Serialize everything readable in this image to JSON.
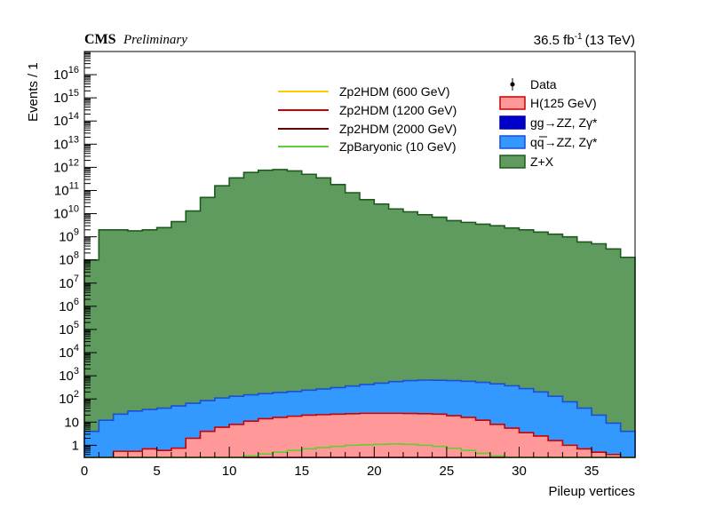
{
  "header": {
    "experiment": "CMS",
    "status": "Preliminary",
    "lumi": "36.5 fb",
    "lumi_exp": "-1",
    "energy": "(13 TeV)"
  },
  "chart_data": {
    "type": "area",
    "xlabel": "Pileup vertices",
    "ylabel": "Events / 1",
    "xlim": [
      0,
      38
    ],
    "ylim": [
      0.3,
      1e+17
    ],
    "y_scale": "log",
    "stacked": true,
    "x_ticks": [
      0,
      5,
      10,
      15,
      20,
      25,
      30,
      35
    ],
    "y_ticks": [
      {
        "value": 1,
        "base": "1",
        "exp": ""
      },
      {
        "value": 10,
        "base": "10",
        "exp": ""
      },
      {
        "value": 100,
        "base": "10",
        "exp": "2"
      },
      {
        "value": 1000,
        "base": "10",
        "exp": "3"
      },
      {
        "value": 10000.0,
        "base": "10",
        "exp": "4"
      },
      {
        "value": 100000.0,
        "base": "10",
        "exp": "5"
      },
      {
        "value": 1000000.0,
        "base": "10",
        "exp": "6"
      },
      {
        "value": 10000000.0,
        "base": "10",
        "exp": "7"
      },
      {
        "value": 100000000.0,
        "base": "10",
        "exp": "8"
      },
      {
        "value": 1000000000.0,
        "base": "10",
        "exp": "9"
      },
      {
        "value": 10000000000.0,
        "base": "10",
        "exp": "10"
      },
      {
        "value": 100000000000.0,
        "base": "10",
        "exp": "11"
      },
      {
        "value": 1000000000000.0,
        "base": "10",
        "exp": "12"
      },
      {
        "value": 10000000000000.0,
        "base": "10",
        "exp": "13"
      },
      {
        "value": 100000000000000.0,
        "base": "10",
        "exp": "14"
      },
      {
        "value": 1000000000000000.0,
        "base": "10",
        "exp": "15"
      },
      {
        "value": 1e+16,
        "base": "10",
        "exp": "16"
      }
    ],
    "bin_edges": [
      0,
      1,
      2,
      3,
      4,
      5,
      6,
      7,
      8,
      9,
      10,
      11,
      12,
      13,
      14,
      15,
      16,
      17,
      18,
      19,
      20,
      21,
      22,
      23,
      24,
      25,
      26,
      27,
      28,
      29,
      30,
      31,
      32,
      33,
      34,
      35,
      36,
      37,
      38
    ],
    "stack_totals": [
      {
        "name": "Z+X",
        "color": "#5f9a5f",
        "line": "#1e5a1e",
        "values": [
          100000000.0,
          2000000000.0,
          2000000000.0,
          1800000000.0,
          2000000000.0,
          2500000000.0,
          4500000000.0,
          13000000000.0,
          50000000000.0,
          160000000000.0,
          350000000000.0,
          600000000000.0,
          750000000000.0,
          800000000000.0,
          700000000000.0,
          500000000000.0,
          350000000000.0,
          180000000000.0,
          80000000000.0,
          40000000000.0,
          26000000000.0,
          16000000000.0,
          12000000000.0,
          9000000000.0,
          7000000000.0,
          5000000000.0,
          4200000000.0,
          3500000000.0,
          3000000000.0,
          2400000000.0,
          2000000000.0,
          1600000000.0,
          1300000000.0,
          1000000000.0,
          600000000.0,
          500000000.0,
          300000000.0,
          130000000.0
        ]
      },
      {
        "name": "qq→ZZ, Zγ*",
        "color": "#3399ff",
        "line": "#1a4fd6",
        "values": [
          4,
          12,
          22,
          30,
          35,
          40,
          50,
          65,
          85,
          110,
          130,
          150,
          170,
          190,
          210,
          240,
          270,
          310,
          360,
          420,
          480,
          560,
          620,
          650,
          640,
          620,
          580,
          520,
          450,
          370,
          280,
          200,
          130,
          75,
          40,
          20,
          9,
          4
        ]
      },
      {
        "name": "gg→ZZ, Zγ*",
        "color": "#0000cc",
        "line": "#000099",
        "values": [
          0.3,
          0.3,
          0.3,
          0.3,
          0.3,
          0.3,
          0.6,
          1.2,
          2.5,
          3.5,
          5,
          7,
          9,
          11,
          12,
          13,
          14,
          14.5,
          15,
          15,
          15,
          14.5,
          14,
          12,
          10,
          7,
          5,
          3.5,
          2,
          1.2,
          0.8,
          0.5,
          0.3,
          0.3,
          0.3,
          0.3,
          0.3,
          0.3
        ]
      },
      {
        "name": "H(125 GeV)",
        "color": "#ff9999",
        "line": "#cc0000",
        "values": [
          0.3,
          0.3,
          0.55,
          0.55,
          0.7,
          0.6,
          0.75,
          2,
          4,
          6,
          8,
          11,
          14,
          16,
          18,
          20,
          21,
          22,
          23,
          24,
          24,
          24,
          23.5,
          23,
          22,
          19,
          16,
          12,
          8,
          5.5,
          3.5,
          2.5,
          1.6,
          1,
          0.7,
          0.5,
          0.4,
          0.3
        ]
      }
    ],
    "signals": [
      {
        "name": "Zp2HDM (600 GeV)",
        "color": "#ffcc00",
        "values": []
      },
      {
        "name": "Zp2HDM (1200 GeV)",
        "color": "#cc0000",
        "values": []
      },
      {
        "name": "Zp2HDM (2000 GeV)",
        "color": "#660000",
        "values": []
      },
      {
        "name": "ZpBaryonic (10 GeV)",
        "color": "#66cc33",
        "values": [
          0.3,
          0.3,
          0.3,
          0.3,
          0.3,
          0.3,
          0.3,
          0.3,
          0.3,
          0.3,
          0.3,
          0.35,
          0.42,
          0.5,
          0.6,
          0.7,
          0.8,
          0.9,
          1,
          1.05,
          1.1,
          1.15,
          1.1,
          1,
          0.9,
          0.75,
          0.6,
          0.45,
          0.35,
          0.3,
          0.3,
          0.3,
          0.3,
          0.3,
          0.3,
          0.3,
          0.3,
          0.3
        ]
      }
    ],
    "legend": {
      "left": [
        "Zp2HDM (600 GeV)",
        "Zp2HDM (1200 GeV)",
        "Zp2HDM (2000 GeV)",
        "ZpBaryonic (10 GeV)"
      ],
      "right": [
        "Data",
        "H(125 GeV)",
        "gg→ZZ, Zγ*",
        "qq→ZZ, Zγ*",
        "Z+X"
      ],
      "placement": "top"
    }
  }
}
